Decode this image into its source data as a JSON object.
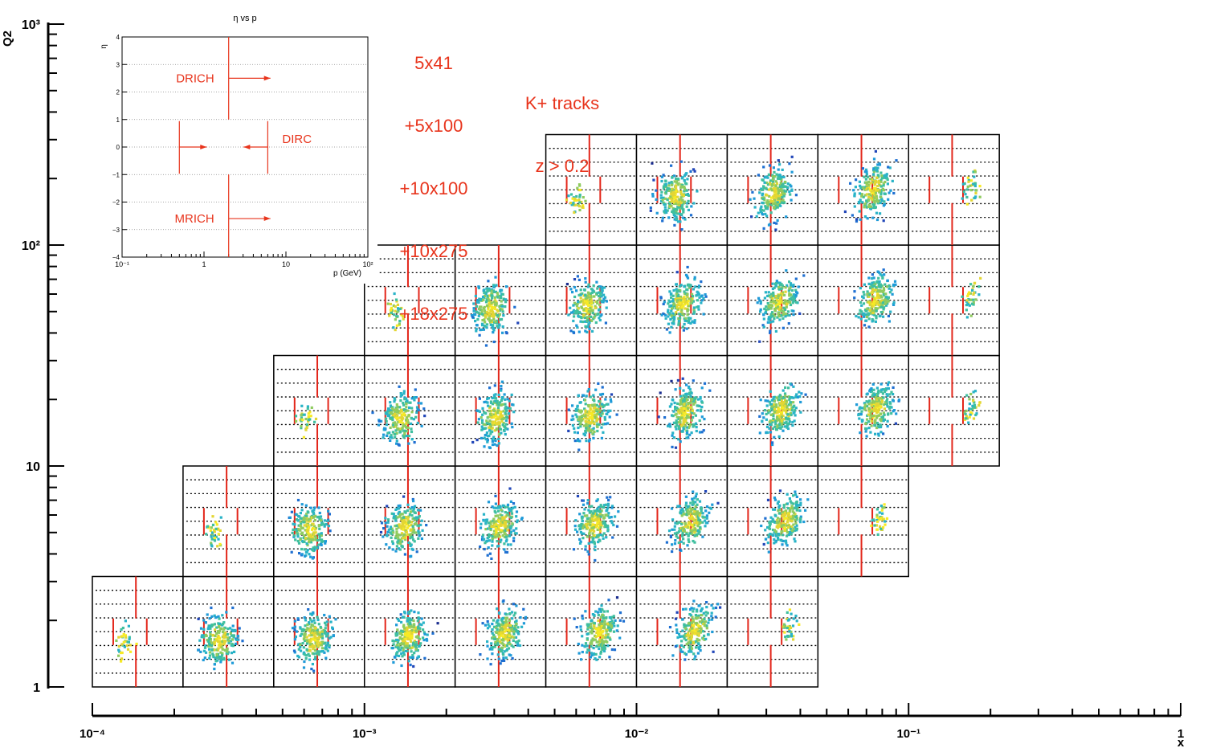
{
  "chart_data": {
    "type": "heatmap",
    "title": "",
    "xlabel": "x",
    "ylabel": "Q2",
    "xscale": "log",
    "yscale": "log",
    "xlim": [
      0.0001,
      1
    ],
    "ylim": [
      1,
      1000
    ],
    "x_tick_labels": [
      "10⁻⁴",
      "10⁻³",
      "10⁻²",
      "10⁻¹",
      "1"
    ],
    "y_tick_labels": [
      "1",
      "10",
      "10²",
      "10³"
    ],
    "annotations": {
      "beams": [
        "5x41",
        "+5x100",
        "+10x100",
        "+10x275",
        "+18x275"
      ],
      "selection": [
        "K+ tracks",
        "z > 0.2"
      ]
    },
    "panel_grid": {
      "x_bins_per_decade": 3,
      "y_bins_per_decade": 2,
      "panel_axis": "eta vs p (GeV), log p",
      "rows": [
        {
          "q2_row": 0,
          "x_bins": [
            0,
            1,
            2,
            3,
            4,
            5,
            6,
            7
          ]
        },
        {
          "q2_row": 1,
          "x_bins": [
            1,
            2,
            3,
            4,
            5,
            6,
            7,
            8
          ]
        },
        {
          "q2_row": 2,
          "x_bins": [
            2,
            3,
            4,
            5,
            6,
            7,
            8,
            9
          ]
        },
        {
          "q2_row": 3,
          "x_bins": [
            3,
            4,
            5,
            6,
            7,
            8,
            9
          ]
        },
        {
          "q2_row": 4,
          "x_bins": [
            5,
            6,
            7,
            8,
            9
          ]
        }
      ]
    },
    "inset": {
      "title": "η vs p",
      "xlabel": "p (GeV)",
      "ylabel": "η",
      "x_tick_labels": [
        "10⁻¹",
        "1",
        "10",
        "10²"
      ],
      "y_ticks": [
        -4,
        -3,
        -2,
        -1,
        0,
        1,
        2,
        3,
        4
      ],
      "detectors": [
        {
          "name": "DRICH",
          "p_min": 2,
          "eta_range": [
            1,
            4
          ]
        },
        {
          "name": "DIRC",
          "p_range": [
            0.5,
            6
          ],
          "eta_range": [
            -1,
            1
          ]
        },
        {
          "name": "MRICH",
          "p_min": 2,
          "eta_range": [
            -4,
            -1
          ]
        }
      ]
    }
  }
}
